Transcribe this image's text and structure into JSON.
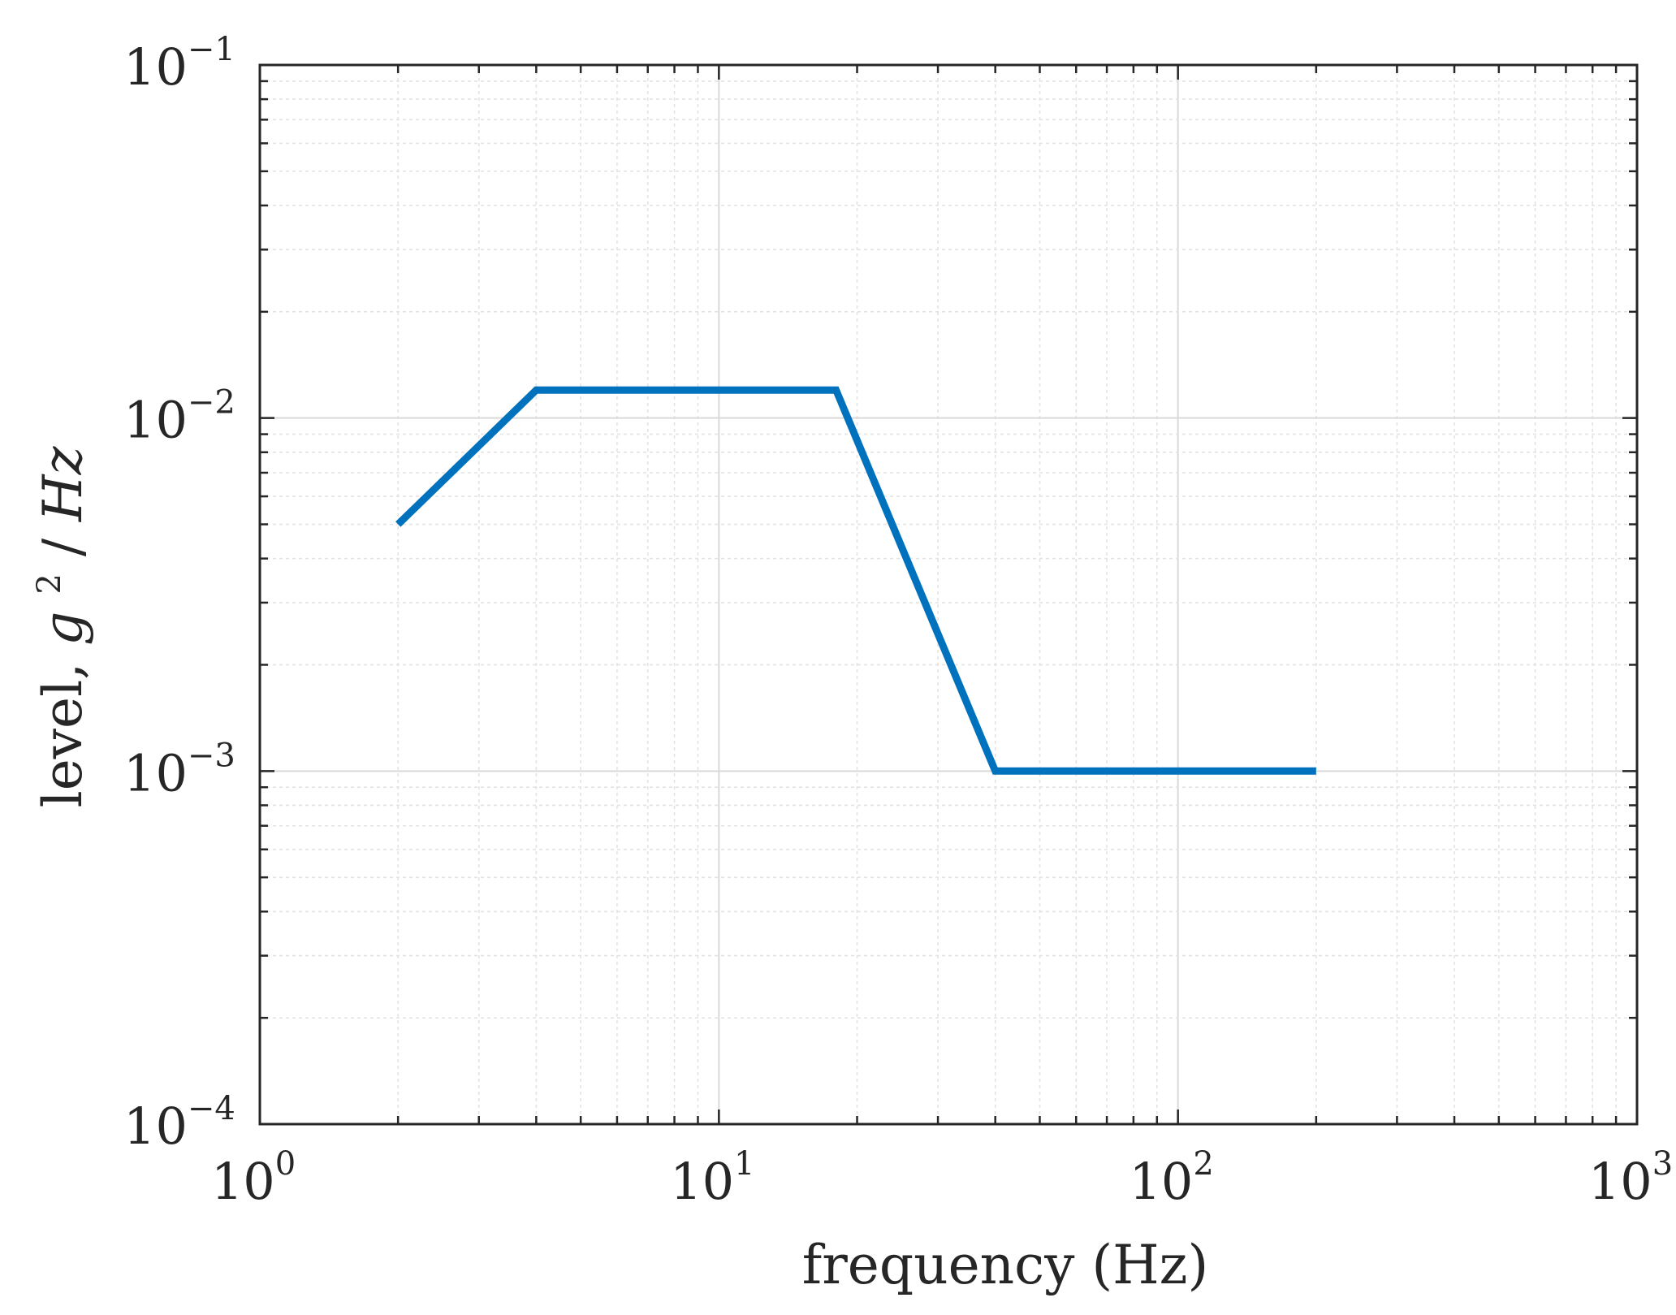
{
  "chart_data": {
    "type": "line",
    "x_scale": "log",
    "y_scale": "log",
    "xlim": [
      1,
      1000
    ],
    "ylim": [
      0.0001,
      0.1
    ],
    "grid": true,
    "minor_grid": true,
    "xlabel": "frequency (Hz)",
    "ylabel": {
      "prefix": "level, ",
      "g": "g",
      "sup": "2",
      "slash": " / ",
      "unit": "Hz"
    },
    "x_ticks": [
      {
        "value": 1,
        "base": "10",
        "exp": "0"
      },
      {
        "value": 10,
        "base": "10",
        "exp": "1"
      },
      {
        "value": 100,
        "base": "10",
        "exp": "2"
      },
      {
        "value": 1000,
        "base": "10",
        "exp": "3"
      }
    ],
    "y_ticks": [
      {
        "value": 0.0001,
        "base": "10",
        "exp": "−4"
      },
      {
        "value": 0.001,
        "base": "10",
        "exp": "−3"
      },
      {
        "value": 0.01,
        "base": "10",
        "exp": "−2"
      },
      {
        "value": 0.1,
        "base": "10",
        "exp": "−1"
      }
    ],
    "series": [
      {
        "color": "#0072BD",
        "x": [
          2,
          4,
          18,
          40,
          200
        ],
        "y": [
          0.005,
          0.012,
          0.012,
          0.001,
          0.001
        ]
      }
    ]
  }
}
